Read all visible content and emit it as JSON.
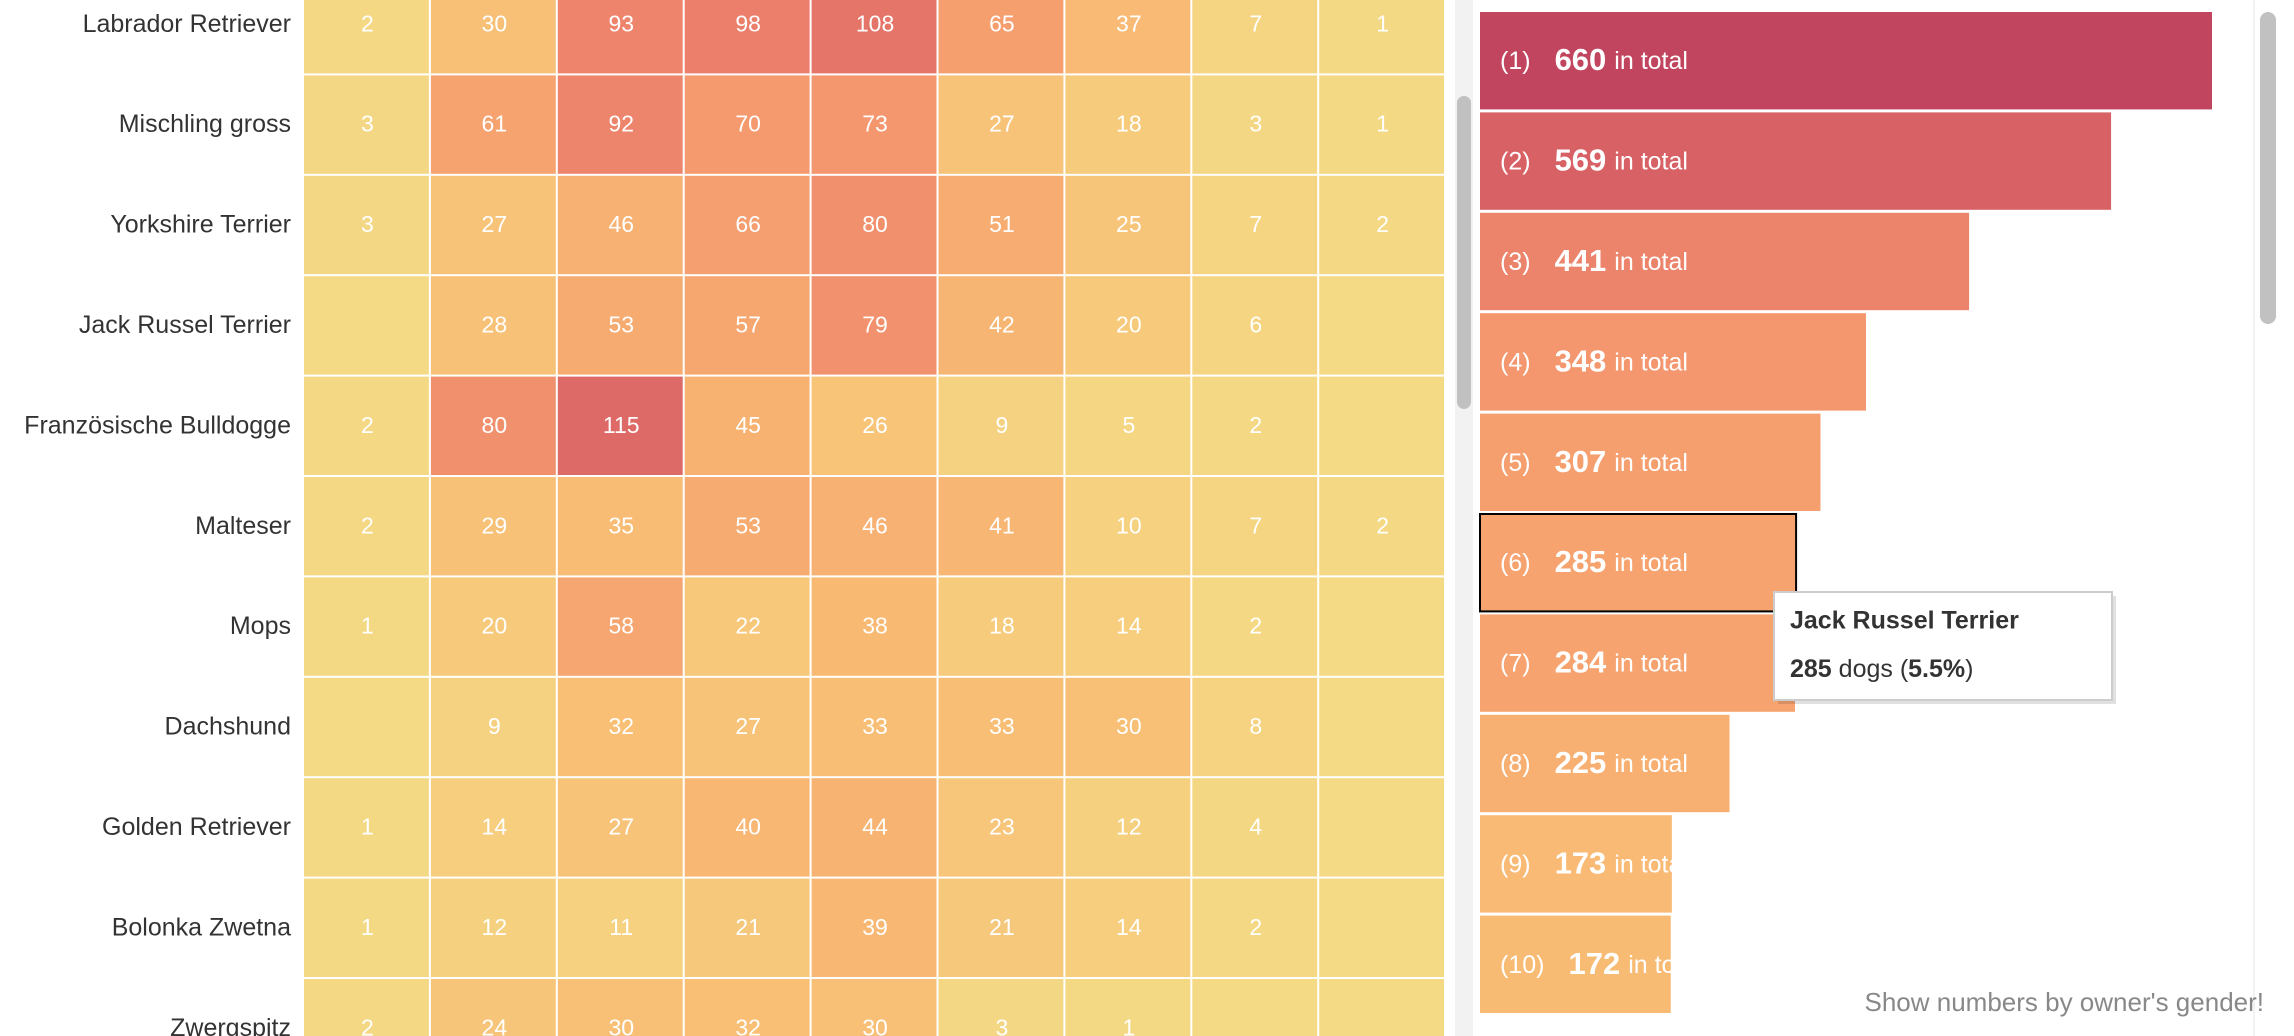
{
  "chart_data": [
    {
      "type": "heatmap",
      "categories": [
        null,
        null,
        null,
        null,
        null,
        null,
        null,
        null,
        null
      ],
      "rows": [
        "Labrador Retriever",
        "Mischling gross",
        "Yorkshire Terrier",
        "Jack Russel Terrier",
        "Französische Bulldogge",
        "Malteser",
        "Mops",
        "Dachshund",
        "Golden Retriever",
        "Bolonka Zwetna",
        "Zwergspitz"
      ],
      "values": [
        [
          2,
          30,
          93,
          98,
          108,
          65,
          37,
          7,
          1
        ],
        [
          3,
          61,
          92,
          70,
          73,
          27,
          18,
          3,
          1
        ],
        [
          3,
          27,
          46,
          66,
          80,
          51,
          25,
          7,
          2
        ],
        [
          null,
          28,
          53,
          57,
          79,
          42,
          20,
          6,
          null
        ],
        [
          2,
          80,
          115,
          45,
          26,
          9,
          5,
          2,
          null
        ],
        [
          2,
          29,
          35,
          53,
          46,
          41,
          10,
          7,
          2
        ],
        [
          1,
          20,
          58,
          22,
          38,
          18,
          14,
          2,
          null
        ],
        [
          null,
          9,
          32,
          27,
          33,
          33,
          30,
          8,
          null
        ],
        [
          1,
          14,
          27,
          40,
          44,
          23,
          12,
          4,
          null
        ],
        [
          1,
          12,
          11,
          21,
          39,
          21,
          14,
          2,
          null
        ],
        [
          2,
          24,
          30,
          32,
          30,
          3,
          1,
          null,
          null
        ]
      ],
      "color_scale": [
        "#f4da85",
        "#f8bc74",
        "#f59a6e",
        "#e8786a",
        "#c2455f"
      ]
    },
    {
      "type": "bar",
      "orientation": "horizontal",
      "categories": [
        "(1)",
        "(2)",
        "(3)",
        "(4)",
        "(5)",
        "(6)",
        "(7)",
        "(8)",
        "(9)",
        "(10)"
      ],
      "values": [
        660,
        569,
        441,
        348,
        307,
        285,
        284,
        225,
        173,
        172
      ],
      "label_suffix": "in total",
      "highlighted": 5,
      "color_scale": [
        "#f4da85",
        "#f8bc74",
        "#f59a6e",
        "#e8786a",
        "#c2455f"
      ]
    }
  ],
  "tooltip": {
    "title": "Jack Russel Terrier",
    "parts": [
      "285",
      " dogs (",
      "5.5%",
      ")"
    ]
  },
  "footer": "Show numbers by owner's gender!"
}
